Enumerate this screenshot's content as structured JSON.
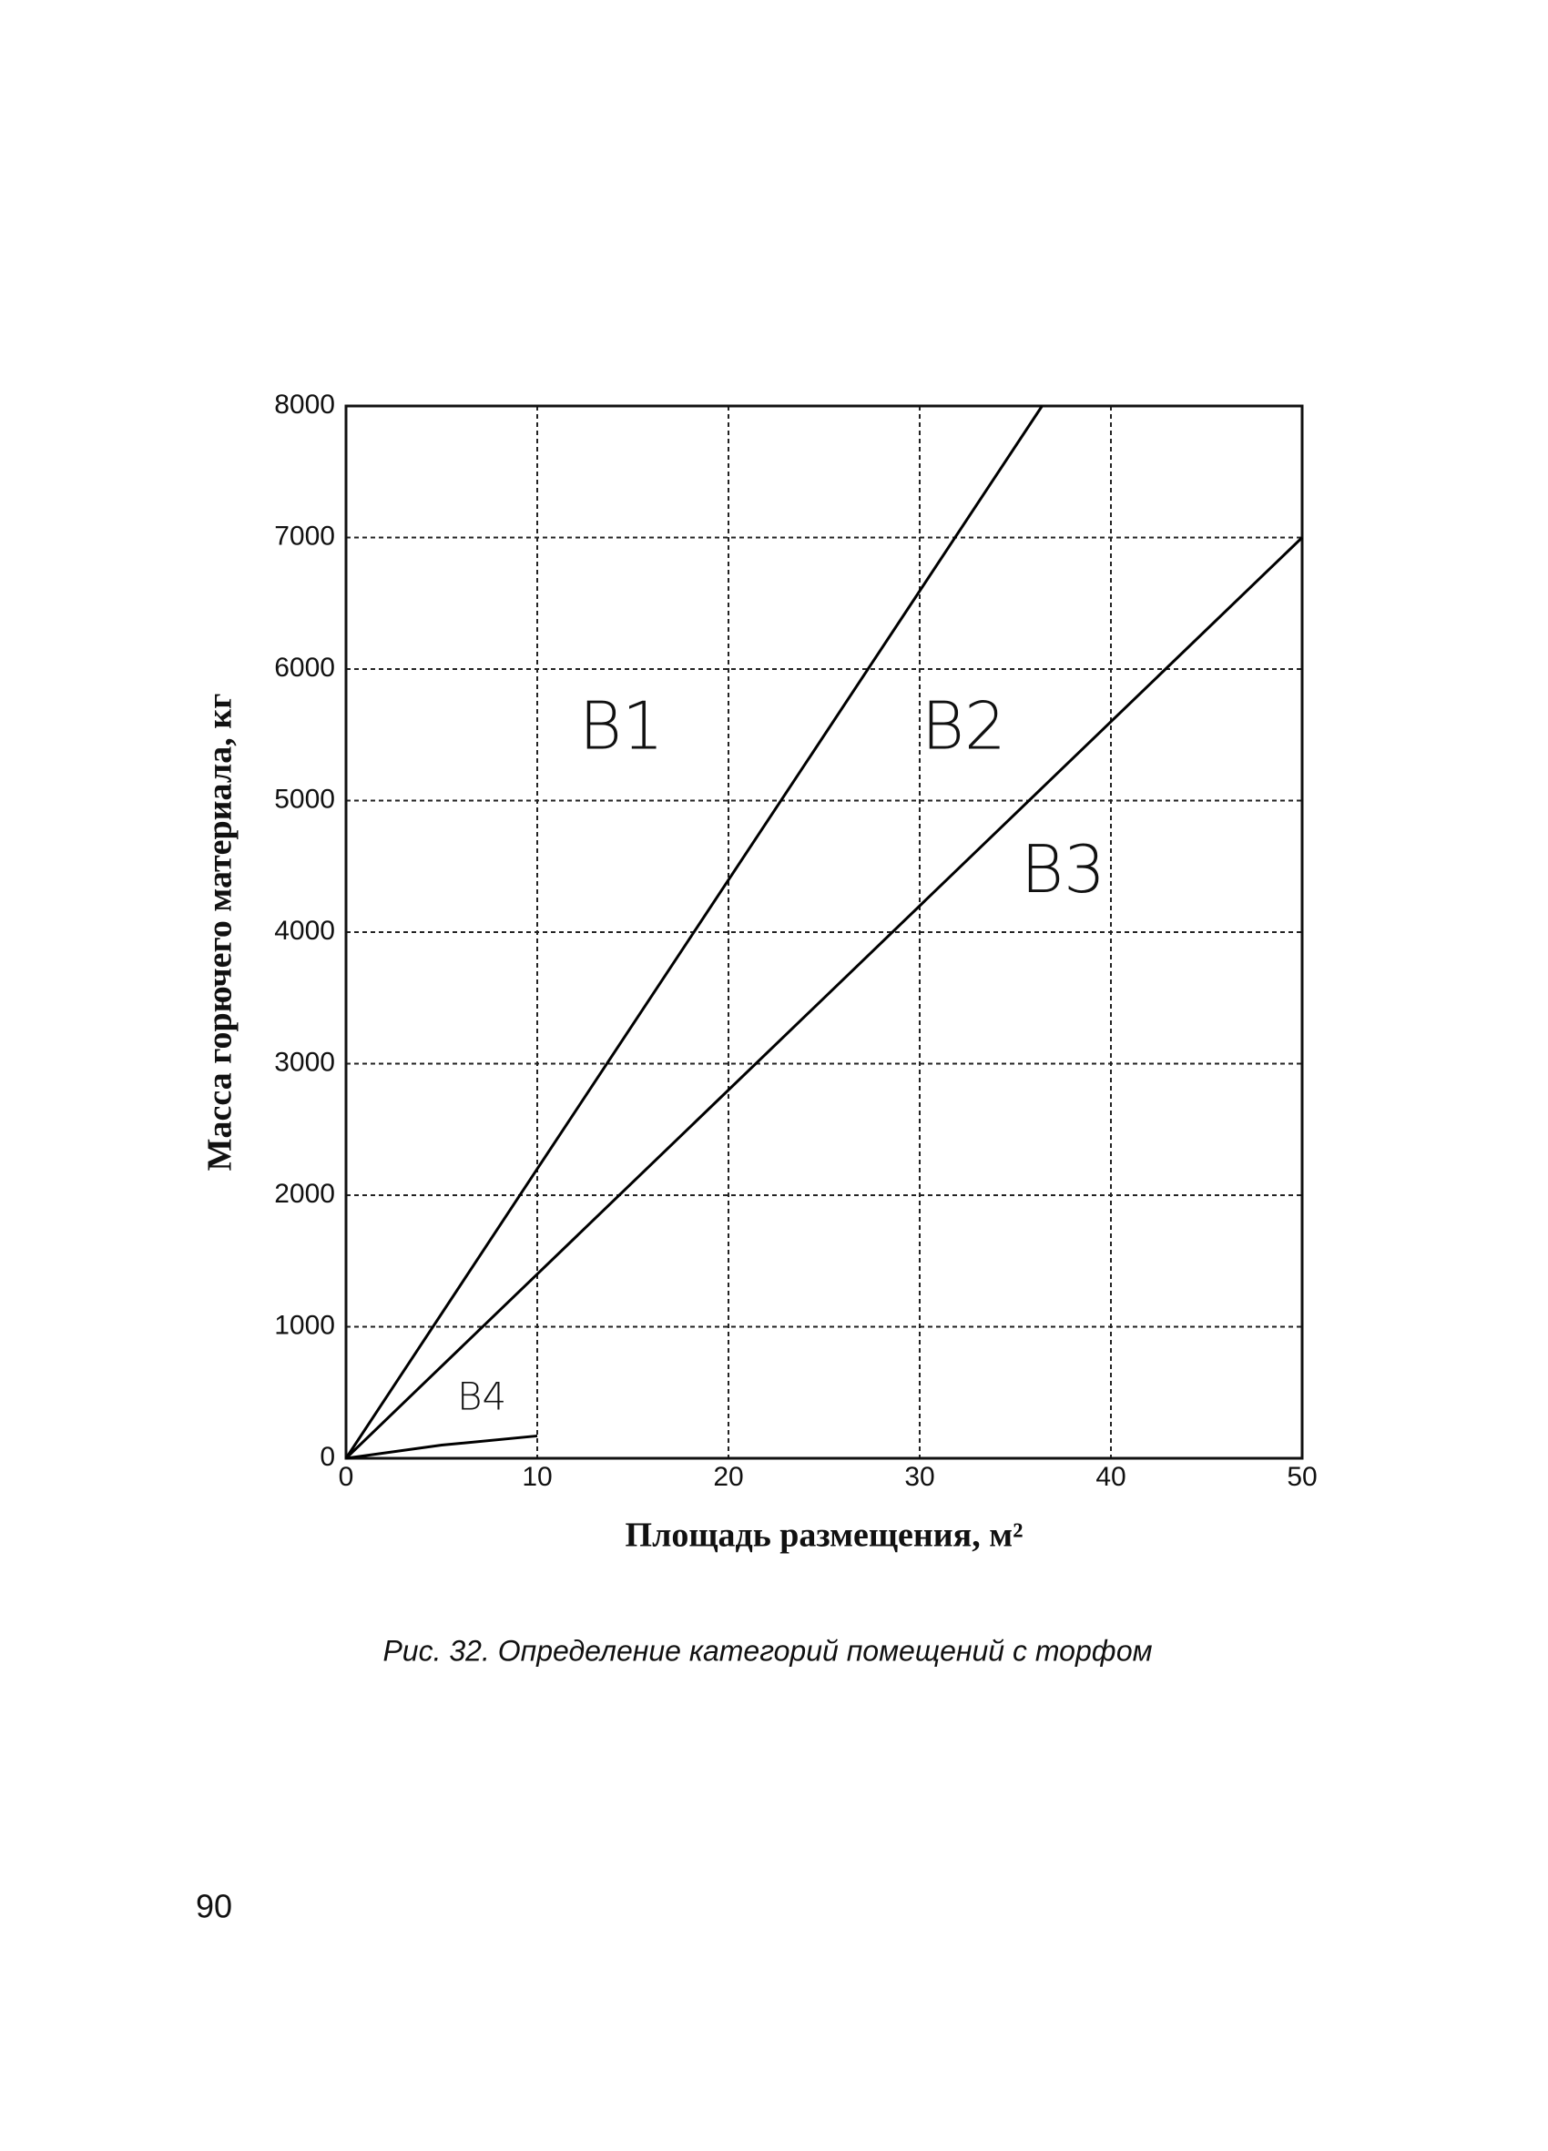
{
  "chart_data": {
    "type": "line",
    "xlabel": "Площадь размещения, м²",
    "ylabel": "Масса горючего материала, кг",
    "caption": "Рис. 32. Определение категорий помещений с торфом",
    "page_number": "90",
    "xlim": [
      0,
      50
    ],
    "ylim": [
      0,
      8000
    ],
    "xticks": [
      0,
      10,
      20,
      30,
      40,
      50
    ],
    "yticks": [
      0,
      1000,
      2000,
      3000,
      4000,
      5000,
      6000,
      7000,
      8000
    ],
    "grid": true,
    "series": [
      {
        "color": "#000000",
        "x": [
          0,
          10,
          36.4
        ],
        "values": [
          0,
          2200,
          8000
        ]
      },
      {
        "color": "#000000",
        "x": [
          0,
          10,
          50
        ],
        "values": [
          0,
          1400,
          7000
        ]
      },
      {
        "color": "#000000",
        "x": [
          0,
          5,
          10
        ],
        "values": [
          0,
          100,
          170
        ]
      }
    ],
    "annotations": [
      {
        "text": "В1",
        "x": 14.4,
        "y": 5530,
        "size": "large"
      },
      {
        "text": "В2",
        "x": 32.3,
        "y": 5530,
        "size": "large"
      },
      {
        "text": "В3",
        "x": 37.5,
        "y": 4440,
        "size": "large"
      },
      {
        "text": "В4",
        "x": 7.1,
        "y": 450,
        "size": "small"
      }
    ]
  }
}
